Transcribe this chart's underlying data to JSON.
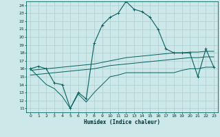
{
  "xlabel": "Humidex (Indice chaleur)",
  "bg_color": "#cce8e8",
  "grid_color": "#aacece",
  "line_color": "#006060",
  "xlim": [
    -0.5,
    23.5
  ],
  "ylim": [
    10.5,
    24.5
  ],
  "yticks": [
    11,
    12,
    13,
    14,
    15,
    16,
    17,
    18,
    19,
    20,
    21,
    22,
    23,
    24
  ],
  "xticks": [
    0,
    1,
    2,
    3,
    4,
    5,
    6,
    7,
    8,
    9,
    10,
    11,
    12,
    13,
    14,
    15,
    16,
    17,
    18,
    19,
    20,
    21,
    22,
    23
  ],
  "series_main": [
    16.0,
    16.3,
    16.0,
    14.2,
    14.0,
    11.0,
    13.0,
    12.2,
    19.2,
    21.5,
    22.5,
    23.0,
    24.5,
    23.5,
    23.2,
    22.5,
    21.0,
    18.5,
    18.0,
    18.0,
    18.0,
    15.0,
    18.5,
    16.2
  ],
  "series_min": [
    16.0,
    15.0,
    14.0,
    13.5,
    12.5,
    11.0,
    12.8,
    11.8,
    13.0,
    14.0,
    15.0,
    15.2,
    15.5,
    15.5,
    15.5,
    15.5,
    15.5,
    15.5,
    15.5,
    15.8,
    16.0,
    16.0,
    16.2,
    16.2
  ],
  "series_trend1": [
    15.8,
    15.9,
    16.0,
    16.1,
    16.2,
    16.3,
    16.4,
    16.5,
    16.6,
    16.8,
    17.0,
    17.2,
    17.4,
    17.5,
    17.6,
    17.7,
    17.8,
    17.9,
    18.0,
    18.0,
    18.1,
    18.1,
    18.2,
    18.2
  ],
  "series_trend2": [
    15.2,
    15.3,
    15.4,
    15.5,
    15.6,
    15.7,
    15.8,
    15.9,
    16.0,
    16.2,
    16.4,
    16.5,
    16.6,
    16.7,
    16.8,
    16.9,
    17.0,
    17.1,
    17.2,
    17.3,
    17.4,
    17.4,
    17.5,
    17.5
  ]
}
